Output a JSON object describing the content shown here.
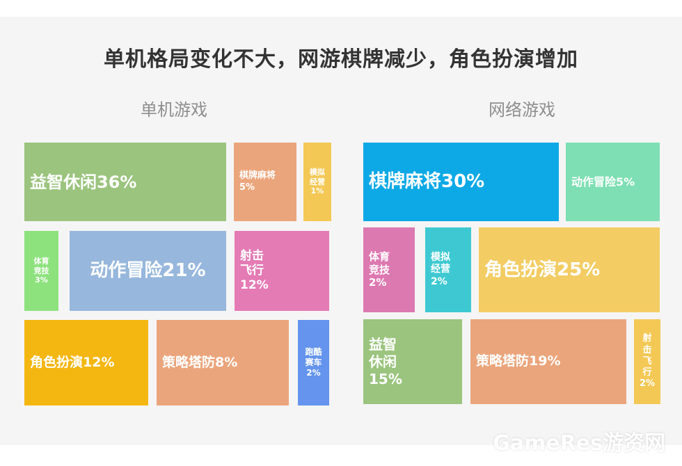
{
  "page_title": "单机格局变化不大，网游棋牌减少，角色扮演增加",
  "watermark": "GameRes游资网",
  "chart_data": [
    {
      "type": "treemap",
      "title": "单机游戏",
      "items": [
        {
          "label": "益智休闲36%",
          "value": 36,
          "color": "#9bc47e"
        },
        {
          "label": "棋牌麻将 5%",
          "value": 5,
          "color": "#eba57c"
        },
        {
          "label": "模拟经营 1%",
          "value": 1,
          "color": "#f3c855"
        },
        {
          "label": "体育竞技 3%",
          "value": 3,
          "color": "#8ee27e"
        },
        {
          "label": "动作冒险21%",
          "value": 21,
          "color": "#97b7dc"
        },
        {
          "label": "射击飞行 12%",
          "value": 12,
          "color": "#e47bb5"
        },
        {
          "label": "角色扮演12%",
          "value": 12,
          "color": "#f4b712"
        },
        {
          "label": "策略塔防8%",
          "value": 8,
          "color": "#eba57c"
        },
        {
          "label": "跑酷赛车 2%",
          "value": 2,
          "color": "#6494ed"
        }
      ]
    },
    {
      "type": "treemap",
      "title": "网络游戏",
      "items": [
        {
          "label": "棋牌麻将30%",
          "value": 30,
          "color": "#0da9e7"
        },
        {
          "label": "动作冒险5%",
          "value": 5,
          "color": "#7ddfb3"
        },
        {
          "label": "体育竞技2%",
          "value": 2,
          "color": "#dd79b1"
        },
        {
          "label": "模拟经营2%",
          "value": 2,
          "color": "#3ec9d2"
        },
        {
          "label": "角色扮演25%",
          "value": 25,
          "color": "#f3cd64"
        },
        {
          "label": "益智休闲 15%",
          "value": 15,
          "color": "#9bc47e"
        },
        {
          "label": "策略塔防19%",
          "value": 19,
          "color": "#eba57c"
        },
        {
          "label": "射击飞行2%",
          "value": 2,
          "color": "#f3c855"
        }
      ]
    }
  ]
}
